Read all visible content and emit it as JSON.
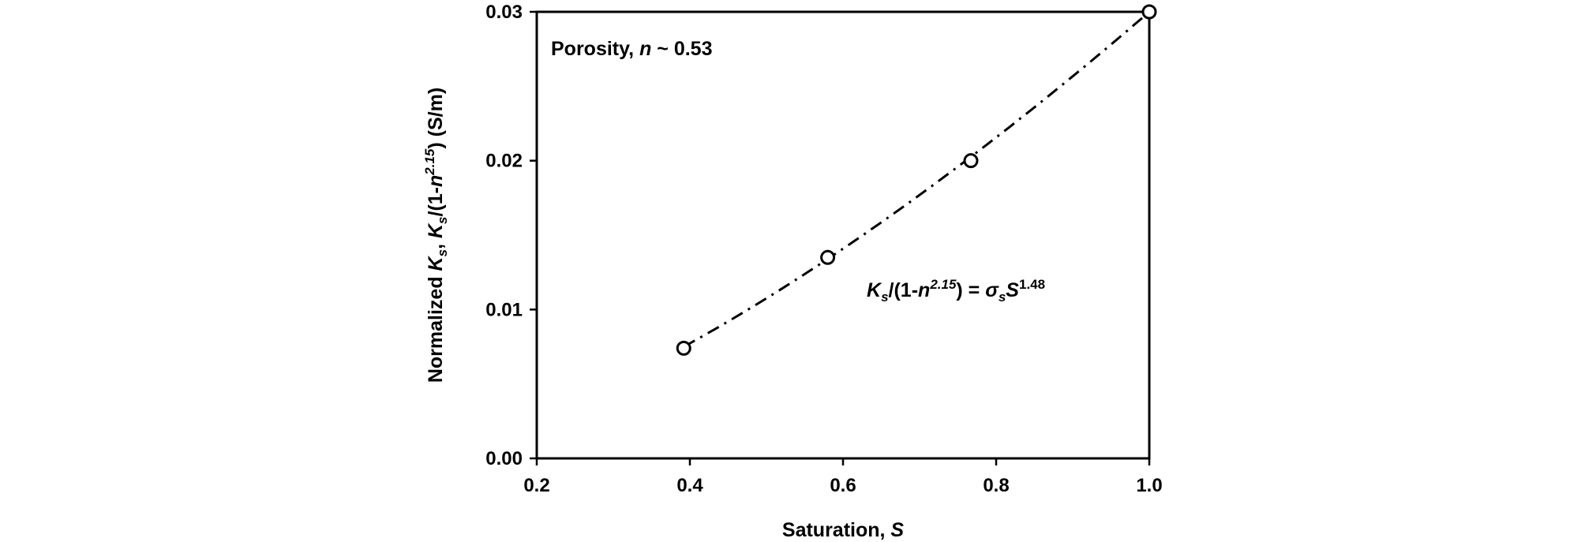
{
  "chart_data": {
    "type": "scatter",
    "xlabel": {
      "prefix": "Saturation, ",
      "var": "S"
    },
    "ylabel": {
      "t1": "Normalized ",
      "t2": "K",
      "t3": "s",
      "t4": ", ",
      "t5": "K",
      "t6": "s",
      "t7": "/(1-",
      "t8": "n",
      "t9": "2.15",
      "t10": ") (S/m)"
    },
    "xlim": [
      0.2,
      1.0
    ],
    "ylim": [
      0.0,
      0.03
    ],
    "x_ticks": [
      0.2,
      0.4,
      0.6,
      0.8,
      1.0
    ],
    "x_tick_labels": [
      "0.2",
      "0.4",
      "0.6",
      "0.8",
      "1.0"
    ],
    "y_ticks": [
      0.0,
      0.01,
      0.02,
      0.03
    ],
    "y_tick_labels": [
      "0.00",
      "0.01",
      "0.02",
      "0.03"
    ],
    "grid": false,
    "series": [
      {
        "marker": "open-circle",
        "x": [
          0.392,
          0.58,
          0.767,
          1.0
        ],
        "y": [
          0.0074,
          0.0135,
          0.02,
          0.03
        ]
      }
    ],
    "fit": {
      "style": "dash-dot",
      "coefficient": 0.03,
      "exponent": 1.48,
      "x_range": [
        0.392,
        1.0
      ]
    },
    "annotations": {
      "porosity": {
        "prefix": "Porosity, ",
        "var": "n",
        "suffix": " ~ 0.53"
      },
      "equation": {
        "p1": "K",
        "p2": "s",
        "p3": "/(1-",
        "p4": "n",
        "p5": "2.15",
        "p6": ")  = ",
        "p7": "σ",
        "p8": "s",
        "p9": "S",
        "p10": "1.48"
      }
    },
    "colors": {
      "line": "#000000",
      "marker": "#000000",
      "background": "#ffffff"
    }
  }
}
